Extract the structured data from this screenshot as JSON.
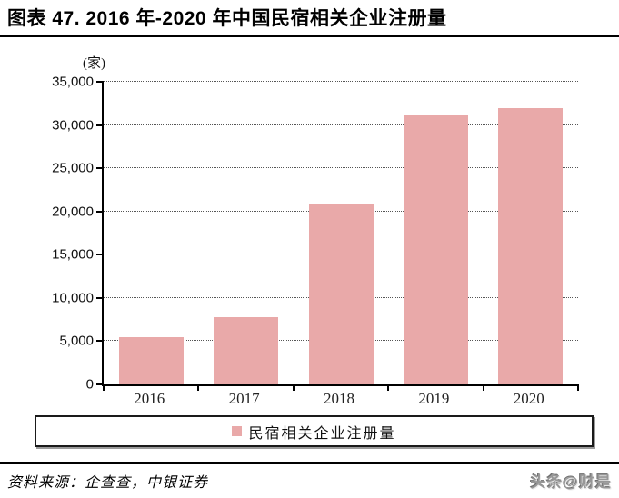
{
  "title": "图表 47. 2016 年-2020 年中国民宿相关企业注册量",
  "chart_data": {
    "type": "bar",
    "title": "2016 年-2020 年中国民宿相关企业注册量",
    "unit_label": "(家)",
    "categories": [
      "2016",
      "2017",
      "2018",
      "2019",
      "2020"
    ],
    "values": [
      5500,
      7800,
      20900,
      31100,
      32000
    ],
    "series_name": "民宿相关企业注册量",
    "xlabel": "",
    "ylabel": "(家)",
    "ylim": [
      0,
      35000
    ],
    "ytick_step": 5000,
    "ytick_labels": [
      "0",
      "5,000",
      "10,000",
      "15,000",
      "20,000",
      "25,000",
      "30,000",
      "35,000"
    ],
    "grid": "horizontal-dotted",
    "legend_position": "bottom-boxed",
    "bar_color": "#E9A9A9"
  },
  "legend": {
    "label": "民宿相关企业注册量",
    "swatch_color": "#E9A9A9"
  },
  "source": {
    "text": "资料来源：企查查，中银证券"
  },
  "watermark": {
    "text": "头条@财是"
  }
}
